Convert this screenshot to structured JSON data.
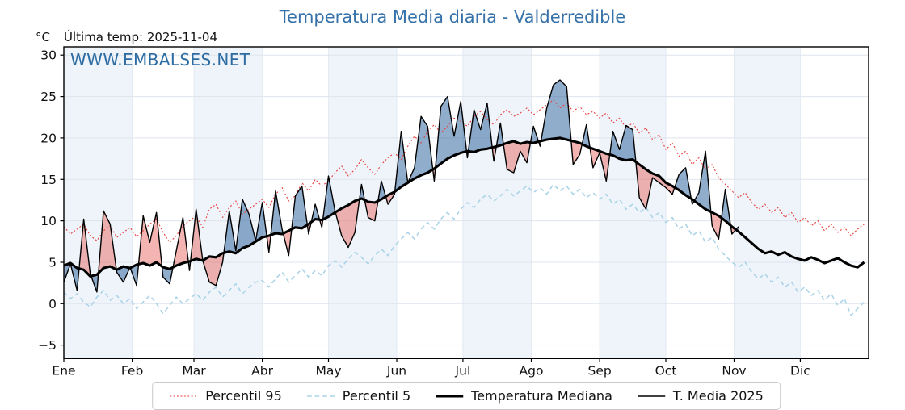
{
  "header": {
    "title": "Temperatura Media diaria - Valderredible",
    "unit_label": "°C",
    "last_temp_label": "Última temp: 2025-11-04",
    "watermark": "WWW.EMBALSES.NET"
  },
  "colors": {
    "title_blue": "#3672a9",
    "watermark_blue": "#2d6ca3",
    "percentil95_red": "#e8413c",
    "percentil5_blue": "#a8d2e7",
    "line_black": "#000000",
    "fill_above": "rgba(228,78,72,0.42)",
    "fill_below": "rgba(52,106,160,0.55)",
    "month_band": "#eff4fa",
    "grid_h": "#dfe5ed",
    "grid_v": "#e3eaf2",
    "axis": "#000000"
  },
  "chart_data": {
    "type": "line",
    "title": "Temperatura Media diaria - Valderredible",
    "xlabel": "",
    "ylabel": "°C",
    "ylim": [
      -6.6,
      31
    ],
    "yticks": [
      -5,
      0,
      5,
      10,
      15,
      20,
      25,
      30
    ],
    "x_unit": "day_of_year",
    "x_start_day": 0,
    "x_step_days": 3,
    "x_ticklabels": [
      "Ene",
      "Feb",
      "Mar",
      "Abr",
      "May",
      "Jun",
      "Jul",
      "Ago",
      "Sep",
      "Oct",
      "Nov",
      "Dic"
    ],
    "month_days": [
      31,
      28,
      31,
      30,
      31,
      30,
      31,
      31,
      30,
      31,
      30,
      31
    ],
    "grid": true,
    "legend_position": "bottom",
    "last_observation": "2025-11-04",
    "series": [
      {
        "name": "Percentil 95",
        "color": "#e8413c",
        "width": 1.1,
        "dash": "2 2.4",
        "values": [
          9.3,
          8.4,
          9.0,
          9.6,
          8.2,
          7.6,
          8.8,
          9.4,
          8.0,
          8.6,
          9.2,
          8.1,
          8.8,
          9.6,
          10.2,
          8.6,
          7.4,
          8.2,
          9.4,
          10.0,
          10.6,
          9.2,
          11.4,
          12.0,
          10.4,
          11.6,
          12.4,
          10.8,
          11.4,
          12.0,
          12.6,
          11.6,
          13.2,
          14.0,
          12.4,
          13.0,
          14.6,
          13.6,
          15.0,
          14.2,
          14.8,
          15.8,
          16.6,
          15.4,
          16.2,
          17.4,
          16.4,
          15.6,
          16.8,
          17.6,
          18.2,
          17.4,
          19.0,
          20.2,
          19.4,
          20.8,
          21.6,
          20.6,
          21.4,
          22.4,
          22.0,
          21.4,
          22.6,
          23.2,
          22.2,
          21.6,
          22.8,
          23.4,
          22.6,
          23.0,
          23.6,
          22.8,
          23.4,
          24.0,
          24.6,
          23.6,
          24.2,
          23.2,
          23.8,
          22.8,
          23.2,
          22.4,
          23.0,
          21.8,
          22.4,
          21.2,
          21.8,
          20.6,
          21.2,
          19.8,
          20.4,
          18.6,
          19.4,
          17.8,
          18.4,
          16.8,
          17.6,
          16.2,
          16.8,
          15.2,
          14.4,
          13.6,
          12.8,
          13.4,
          12.2,
          11.4,
          12.0,
          11.0,
          11.6,
          10.4,
          11.0,
          9.8,
          10.4,
          9.4,
          10.0,
          8.8,
          9.6,
          8.6,
          9.2,
          8.2,
          9.0,
          9.6
        ]
      },
      {
        "name": "Percentil 5",
        "color": "#a8d2e7",
        "width": 1.5,
        "dash": "5.5 4",
        "values": [
          1.4,
          0.6,
          1.2,
          0.2,
          -0.4,
          0.8,
          1.6,
          0.4,
          1.0,
          0.0,
          0.6,
          -0.6,
          0.2,
          1.0,
          0.0,
          -1.2,
          -0.2,
          0.8,
          0.0,
          0.6,
          1.2,
          0.4,
          1.4,
          2.0,
          0.8,
          1.6,
          2.4,
          1.2,
          2.0,
          2.6,
          2.8,
          2.0,
          3.0,
          3.8,
          2.6,
          3.4,
          4.2,
          3.2,
          4.0,
          3.4,
          4.6,
          5.2,
          4.4,
          5.4,
          6.2,
          5.6,
          4.8,
          5.8,
          6.6,
          5.8,
          7.0,
          7.8,
          8.6,
          7.8,
          9.0,
          9.8,
          9.0,
          10.2,
          11.0,
          10.2,
          11.4,
          12.2,
          11.6,
          12.6,
          13.2,
          12.4,
          13.0,
          13.8,
          13.0,
          13.6,
          14.2,
          13.4,
          14.0,
          13.2,
          14.4,
          13.6,
          14.2,
          13.2,
          13.8,
          12.8,
          13.4,
          12.6,
          13.2,
          12.0,
          12.6,
          11.4,
          12.0,
          11.0,
          11.6,
          10.4,
          11.0,
          9.8,
          10.4,
          9.0,
          9.6,
          8.2,
          8.8,
          7.4,
          8.0,
          6.6,
          5.8,
          5.0,
          4.4,
          5.0,
          3.8,
          3.0,
          3.6,
          2.6,
          3.2,
          2.0,
          2.6,
          1.4,
          2.0,
          1.0,
          1.6,
          0.4,
          1.2,
          -0.2,
          0.6,
          -1.4,
          -0.6,
          0.2
        ]
      },
      {
        "name": "Temperatura Mediana",
        "color": "#000000",
        "width": 3.1,
        "dash": "",
        "values": [
          4.6,
          4.9,
          4.3,
          4.1,
          3.3,
          3.5,
          4.3,
          4.5,
          4.1,
          4.5,
          4.3,
          4.7,
          4.9,
          4.6,
          5.0,
          4.4,
          4.2,
          4.6,
          4.9,
          5.1,
          5.4,
          5.2,
          5.7,
          5.6,
          6.1,
          6.3,
          6.1,
          6.7,
          7.0,
          7.5,
          8.0,
          8.2,
          8.5,
          8.4,
          8.8,
          9.2,
          9.1,
          9.6,
          10.2,
          10.1,
          10.5,
          11.0,
          11.5,
          11.9,
          12.4,
          12.7,
          12.3,
          12.2,
          12.6,
          13.1,
          13.5,
          14.1,
          14.6,
          15.1,
          15.5,
          15.8,
          16.3,
          16.9,
          17.5,
          17.9,
          18.2,
          18.4,
          18.3,
          18.6,
          18.7,
          18.9,
          19.1,
          19.4,
          19.6,
          19.3,
          19.5,
          19.4,
          19.6,
          19.8,
          19.9,
          20.0,
          19.8,
          19.6,
          19.4,
          19.0,
          18.7,
          18.4,
          18.1,
          17.9,
          17.5,
          17.3,
          17.4,
          16.8,
          16.2,
          15.7,
          15.4,
          14.6,
          14.2,
          13.7,
          13.1,
          12.6,
          12.0,
          11.4,
          11.0,
          10.6,
          10.0,
          9.3,
          8.7,
          8.0,
          7.3,
          6.6,
          6.1,
          6.3,
          5.9,
          6.2,
          5.7,
          5.4,
          5.2,
          5.6,
          5.3,
          4.9,
          5.2,
          5.5,
          5.0,
          4.6,
          4.4,
          5.0
        ]
      },
      {
        "name": "T. Media 2025",
        "color": "#000000",
        "width": 1.4,
        "dash": "",
        "values": [
          2.6,
          4.8,
          1.6,
          10.2,
          3.6,
          1.4,
          11.2,
          9.6,
          3.8,
          2.6,
          4.4,
          2.2,
          10.6,
          7.4,
          11.0,
          3.2,
          2.4,
          6.4,
          10.4,
          4.0,
          11.4,
          5.2,
          2.6,
          2.2,
          5.0,
          11.2,
          6.4,
          12.6,
          10.8,
          7.6,
          12.2,
          6.2,
          13.6,
          9.0,
          5.8,
          13.0,
          14.2,
          8.4,
          12.0,
          9.2,
          15.4,
          11.2,
          8.2,
          6.8,
          8.6,
          14.4,
          10.4,
          10.0,
          14.8,
          12.0,
          13.2,
          20.8,
          14.6,
          16.4,
          22.6,
          21.4,
          14.8,
          23.8,
          25.0,
          20.2,
          24.4,
          17.6,
          23.4,
          21.0,
          24.2,
          17.2,
          21.8,
          16.2,
          15.8,
          18.4,
          17.0,
          21.4,
          19.0,
          23.6,
          26.4,
          27.0,
          26.2,
          16.8,
          18.0,
          21.6,
          16.4,
          18.2,
          14.8,
          20.8,
          18.6,
          21.5,
          21.0,
          12.8,
          11.4,
          15.2,
          14.6,
          14.0,
          13.2,
          15.6,
          16.4,
          12.0,
          13.4,
          18.4,
          9.4,
          7.8,
          13.8,
          8.4,
          9.3
        ]
      }
    ]
  },
  "legend": {
    "items": [
      "Percentil 95",
      "Percentil 5",
      "Temperatura Mediana",
      "T. Media 2025"
    ]
  }
}
